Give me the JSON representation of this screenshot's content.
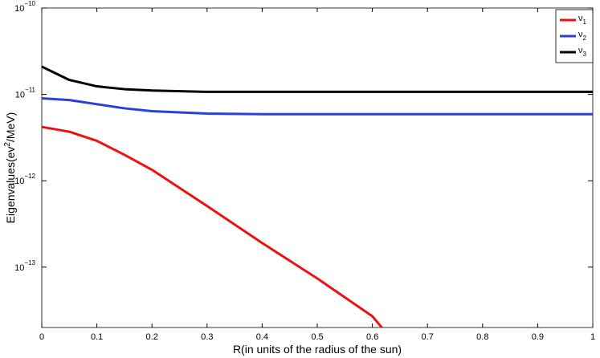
{
  "chart_data": {
    "type": "line",
    "log_y": true,
    "xlabel": "R(in units of the radius of the sun)",
    "ylabel": {
      "text": "Eigenvalues(ev",
      "sup": "2",
      "rest": "/MeV)"
    },
    "x": [
      0,
      0.05,
      0.1,
      0.15,
      0.2,
      0.3,
      0.4,
      0.5,
      0.6,
      0.62,
      0.7,
      0.8,
      0.9,
      1
    ],
    "series": [
      {
        "name": "ν",
        "sub": "1",
        "color": "#ee1111",
        "values": [
          4.2e-12,
          3.7e-12,
          2.9e-12,
          2e-12,
          1.34e-12,
          5.1e-13,
          1.9e-13,
          7.4e-14,
          2.7e-14,
          1.9e-14,
          null,
          null,
          null,
          null
        ]
      },
      {
        "name": "ν",
        "sub": "2",
        "color": "#2a3fe0",
        "values": [
          9e-12,
          8.6e-12,
          7.7e-12,
          6.9e-12,
          6.4e-12,
          6e-12,
          5.9e-12,
          5.9e-12,
          5.9e-12,
          5.9e-12,
          5.9e-12,
          5.9e-12,
          5.9e-12,
          5.9e-12
        ]
      },
      {
        "name": "ν",
        "sub": "3",
        "color": "#000000",
        "values": [
          2.1e-11,
          1.47e-11,
          1.24e-11,
          1.15e-11,
          1.11e-11,
          1.07e-11,
          1.07e-11,
          1.07e-11,
          1.07e-11,
          1.07e-11,
          1.07e-11,
          1.07e-11,
          1.07e-11,
          1.07e-11
        ]
      }
    ],
    "xlim": [
      0,
      1
    ],
    "xticks": [
      0,
      0.1,
      0.2,
      0.3,
      0.4,
      0.5,
      0.6,
      0.7,
      0.8,
      0.9,
      1
    ],
    "ylim": [
      2e-14,
      1e-10
    ],
    "yticks": [
      {
        "value": 1e-13,
        "label": "10",
        "exponent": "−13"
      },
      {
        "value": 1e-12,
        "label": "10",
        "exponent": "−12"
      },
      {
        "value": 1e-11,
        "label": "10",
        "exponent": "−11"
      },
      {
        "value": 1e-10,
        "label": "10",
        "exponent": "−10"
      }
    ],
    "legend": "top-right"
  }
}
